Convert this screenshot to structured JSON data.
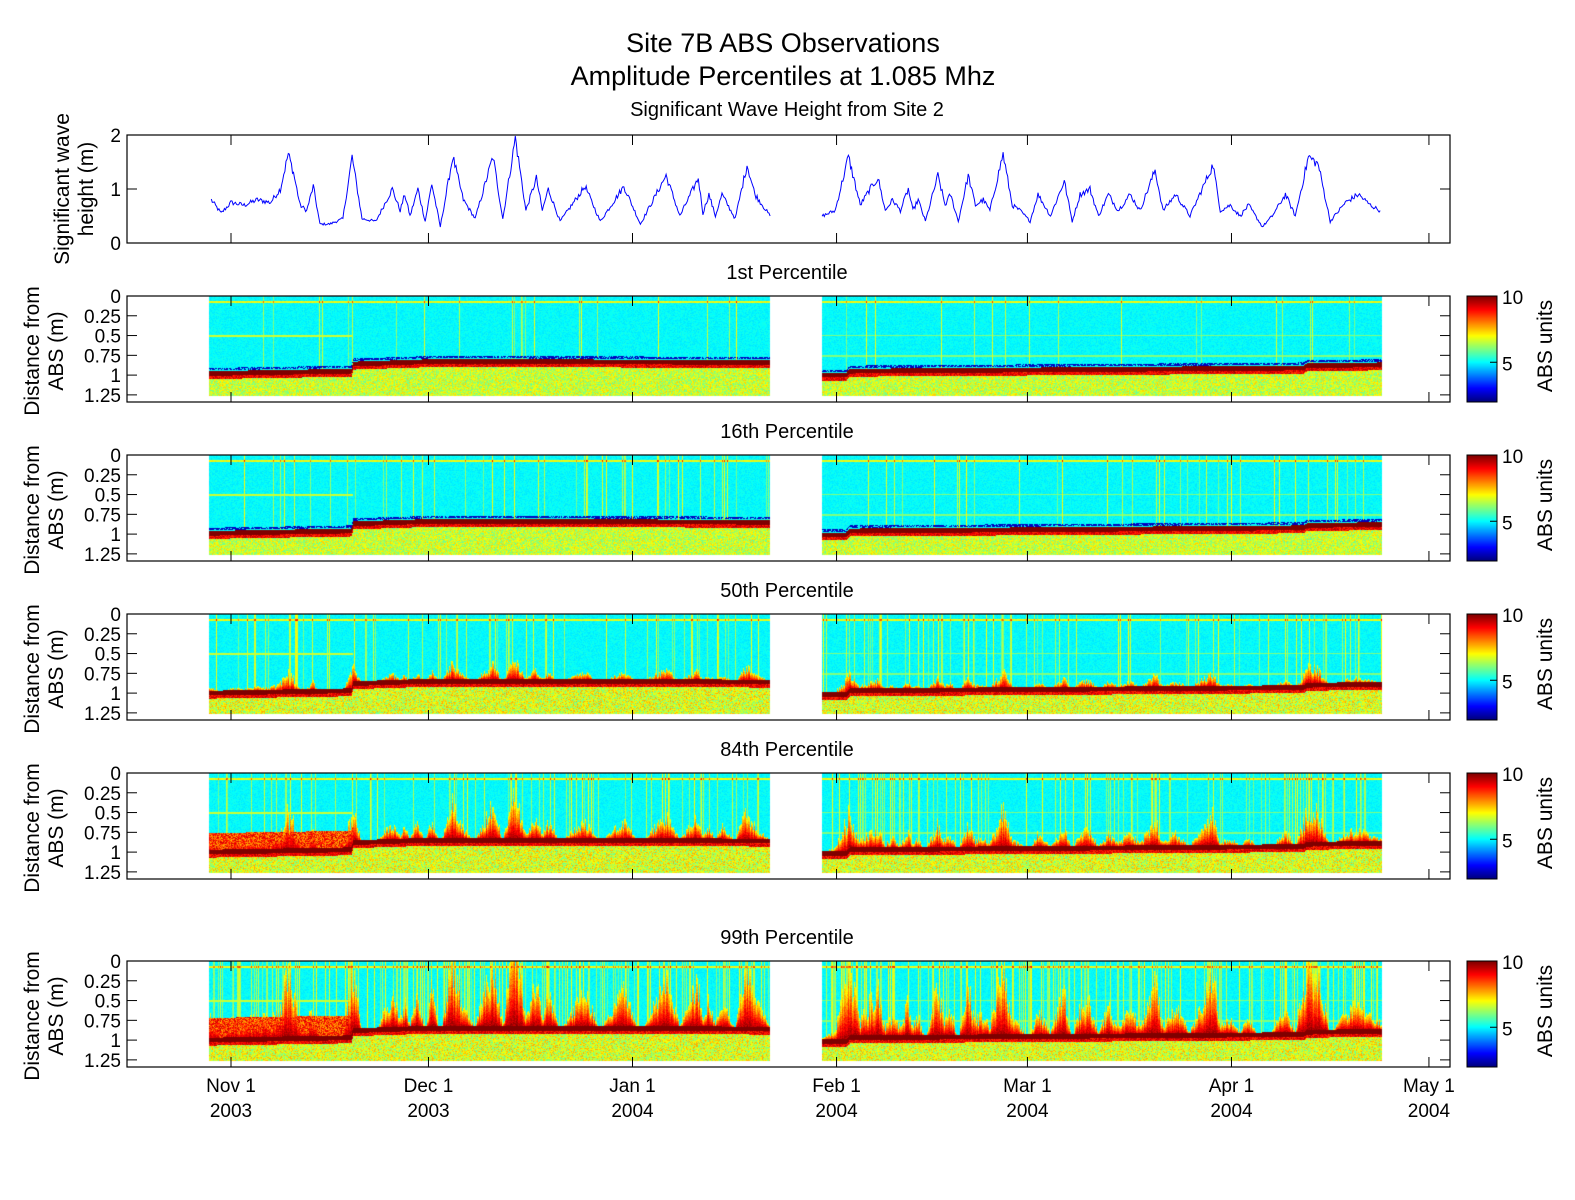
{
  "header": {
    "title": "Site 7B ABS Observations",
    "subtitle": "Amplitude Percentiles at 1.085 Mhz",
    "wave_title": "Significant Wave Height from Site 2"
  },
  "chart_data": [
    {
      "type": "line",
      "title": "Significant Wave Height from Site 2",
      "ylabel": [
        "Significant wave",
        "height (m)"
      ],
      "x_units": "days since 2003-11-01",
      "xlim": [
        -15.8,
        185.2
      ],
      "ylim": [
        0,
        2
      ],
      "yticks": [
        "0",
        "1",
        "2"
      ],
      "color": "#0000ff",
      "series": [
        {
          "name": "Hs segment 1",
          "points": [
            [
              -3.0,
              0.8
            ],
            [
              -1.5,
              0.55
            ],
            [
              0,
              0.75
            ],
            [
              2,
              0.7
            ],
            [
              4,
              0.8
            ],
            [
              6,
              0.75
            ],
            [
              7.5,
              1.0
            ],
            [
              8.7,
              1.65
            ],
            [
              9.5,
              1.3
            ],
            [
              10.5,
              0.7
            ],
            [
              11.5,
              0.6
            ],
            [
              12.5,
              1.05
            ],
            [
              13.5,
              0.35
            ],
            [
              15,
              0.35
            ],
            [
              17,
              0.45
            ],
            [
              18.4,
              1.6
            ],
            [
              19.9,
              0.45
            ],
            [
              22,
              0.4
            ],
            [
              24.5,
              1.0
            ],
            [
              25.7,
              0.6
            ],
            [
              26.4,
              0.9
            ],
            [
              27.2,
              0.5
            ],
            [
              28.4,
              1.0
            ],
            [
              29.5,
              0.4
            ],
            [
              30.5,
              1.1
            ],
            [
              31.8,
              0.3
            ],
            [
              33.7,
              1.6
            ],
            [
              35.3,
              0.8
            ],
            [
              37.1,
              0.45
            ],
            [
              39.8,
              1.6
            ],
            [
              41.3,
              0.45
            ],
            [
              43.2,
              1.95
            ],
            [
              44.8,
              0.6
            ],
            [
              46.4,
              1.2
            ],
            [
              47.3,
              0.6
            ],
            [
              48.2,
              1.0
            ],
            [
              50,
              0.4
            ],
            [
              53.8,
              1.05
            ],
            [
              56.1,
              0.4
            ],
            [
              59.7,
              1.05
            ],
            [
              62.2,
              0.35
            ],
            [
              66.1,
              1.25
            ],
            [
              68.2,
              0.5
            ],
            [
              71,
              1.2
            ],
            [
              71.7,
              0.55
            ],
            [
              72.6,
              0.9
            ],
            [
              73.6,
              0.5
            ],
            [
              74.6,
              0.9
            ],
            [
              76.6,
              0.45
            ],
            [
              78.4,
              1.45
            ],
            [
              79.6,
              0.9
            ],
            [
              81.9,
              0.5
            ]
          ]
        },
        {
          "name": "Hs segment 2",
          "points": [
            [
              89.8,
              0.5
            ],
            [
              91.8,
              0.6
            ],
            [
              93.8,
              1.6
            ],
            [
              95.6,
              0.7
            ],
            [
              97.1,
              1.0
            ],
            [
              98.3,
              1.2
            ],
            [
              99.4,
              0.6
            ],
            [
              100.5,
              0.8
            ],
            [
              101.7,
              0.6
            ],
            [
              102.9,
              1.0
            ],
            [
              103.6,
              0.6
            ],
            [
              104.4,
              0.8
            ],
            [
              105.5,
              0.4
            ],
            [
              107.4,
              1.25
            ],
            [
              108.5,
              0.7
            ],
            [
              109.3,
              0.9
            ],
            [
              110.5,
              0.4
            ],
            [
              112,
              1.25
            ],
            [
              113.1,
              0.7
            ],
            [
              114.3,
              0.8
            ],
            [
              115.3,
              0.6
            ],
            [
              117.3,
              1.65
            ],
            [
              118.7,
              0.7
            ],
            [
              119.9,
              0.6
            ],
            [
              121.4,
              0.4
            ],
            [
              122.6,
              0.9
            ],
            [
              124.5,
              0.5
            ],
            [
              126.6,
              1.15
            ],
            [
              127.8,
              0.4
            ],
            [
              129,
              0.9
            ],
            [
              130.5,
              1.0
            ],
            [
              131.8,
              0.5
            ],
            [
              133.3,
              0.9
            ],
            [
              134.8,
              0.6
            ],
            [
              136.6,
              0.9
            ],
            [
              138.1,
              0.6
            ],
            [
              140.4,
              1.35
            ],
            [
              141.6,
              0.6
            ],
            [
              143.5,
              0.9
            ],
            [
              145.7,
              0.5
            ],
            [
              149.2,
              1.45
            ],
            [
              150.3,
              0.6
            ],
            [
              151.8,
              0.7
            ],
            [
              153.3,
              0.5
            ],
            [
              154.6,
              0.7
            ],
            [
              156.7,
              0.3
            ],
            [
              158.2,
              0.5
            ],
            [
              160.2,
              0.9
            ],
            [
              161.7,
              0.5
            ],
            [
              163.7,
              1.6
            ],
            [
              165.2,
              1.45
            ],
            [
              167,
              0.4
            ],
            [
              169.3,
              0.75
            ],
            [
              171.3,
              0.9
            ],
            [
              173.1,
              0.7
            ],
            [
              174.6,
              0.6
            ]
          ]
        }
      ]
    },
    {
      "type": "heatmap",
      "panels": [
        {
          "title": "1st Percentile",
          "offset": -0.02,
          "plume": 0.0,
          "streaks": 0.03
        },
        {
          "title": "16th Percentile",
          "offset": -0.01,
          "plume": 0.0,
          "streaks": 0.05
        },
        {
          "title": "50th Percentile",
          "offset": 0.0,
          "plume": 0.18,
          "streaks": 0.08
        },
        {
          "title": "84th Percentile",
          "offset": 0.0,
          "plume": 0.38,
          "streaks": 0.12
        },
        {
          "title": "99th Percentile",
          "offset": 0.0,
          "plume": 0.75,
          "streaks": 0.2
        }
      ],
      "ylabel": [
        "Distance from",
        "ABS (m)"
      ],
      "ylim": [
        0,
        1.34
      ],
      "yticks": [
        "0",
        "0.25",
        "0.5",
        "0.75",
        "1",
        "1.25"
      ],
      "ytick_values": [
        0,
        0.25,
        0.5,
        0.75,
        1,
        1.25
      ],
      "data_segments_days": [
        [
          -3.4,
          81.9
        ],
        [
          89.8,
          174.8
        ]
      ],
      "depth_extent": [
        0,
        1.27
      ],
      "bed_distance": [
        [
          -3.4,
          1.0
        ],
        [
          18.3,
          0.97
        ],
        [
          18.6,
          0.88
        ],
        [
          30,
          0.85
        ],
        [
          45,
          0.85
        ],
        [
          81.9,
          0.86
        ],
        [
          89.8,
          1.02
        ],
        [
          93.5,
          1.02
        ],
        [
          94,
          0.97
        ],
        [
          130,
          0.95
        ],
        [
          163,
          0.93
        ],
        [
          163.5,
          0.9
        ],
        [
          174.8,
          0.89
        ]
      ],
      "colorbar": {
        "label": "ABS units",
        "range": [
          2,
          10
        ],
        "ticks": [
          "5",
          "10"
        ],
        "tick_values": [
          5,
          10
        ],
        "colormap": "jet"
      }
    }
  ],
  "xaxis": {
    "ticks": [
      {
        "day": 0,
        "line1": "Nov 1",
        "line2": "2003"
      },
      {
        "day": 30,
        "line1": "Dec 1",
        "line2": "2003"
      },
      {
        "day": 61,
        "line1": "Jan 1",
        "line2": "2004"
      },
      {
        "day": 92,
        "line1": "Feb 1",
        "line2": "2004"
      },
      {
        "day": 121,
        "line1": "Mar 1",
        "line2": "2004"
      },
      {
        "day": 152,
        "line1": "Apr 1",
        "line2": "2004"
      },
      {
        "day": 182,
        "line1": "May 1",
        "line2": "2004"
      }
    ]
  }
}
